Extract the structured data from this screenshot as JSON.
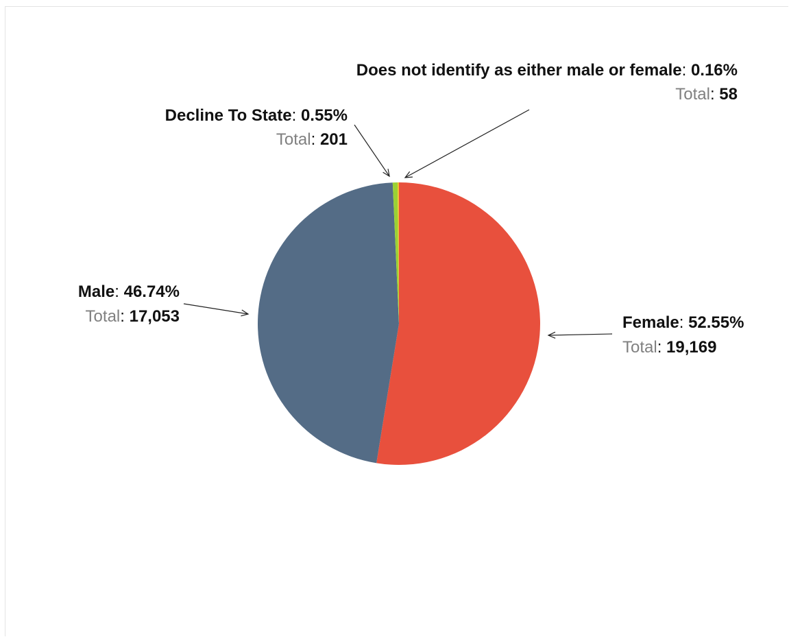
{
  "chart_data": {
    "type": "pie",
    "slices": [
      {
        "name": "Female",
        "percent": 52.55,
        "total": 19169,
        "total_label": "19,169",
        "percent_label": "52.55%",
        "color": "#e8503d"
      },
      {
        "name": "Male",
        "percent": 46.74,
        "total": 17053,
        "total_label": "17,053",
        "percent_label": "46.74%",
        "color": "#546c86"
      },
      {
        "name": "Decline To State",
        "percent": 0.55,
        "total": 201,
        "total_label": "201",
        "percent_label": "0.55%",
        "color": "#9bd134"
      },
      {
        "name": "Does not identify as either male or female",
        "percent": 0.16,
        "total": 58,
        "total_label": "58",
        "percent_label": "0.16%",
        "color": "#f2c230"
      }
    ],
    "total_prefix": "Total",
    "legend": "none"
  }
}
